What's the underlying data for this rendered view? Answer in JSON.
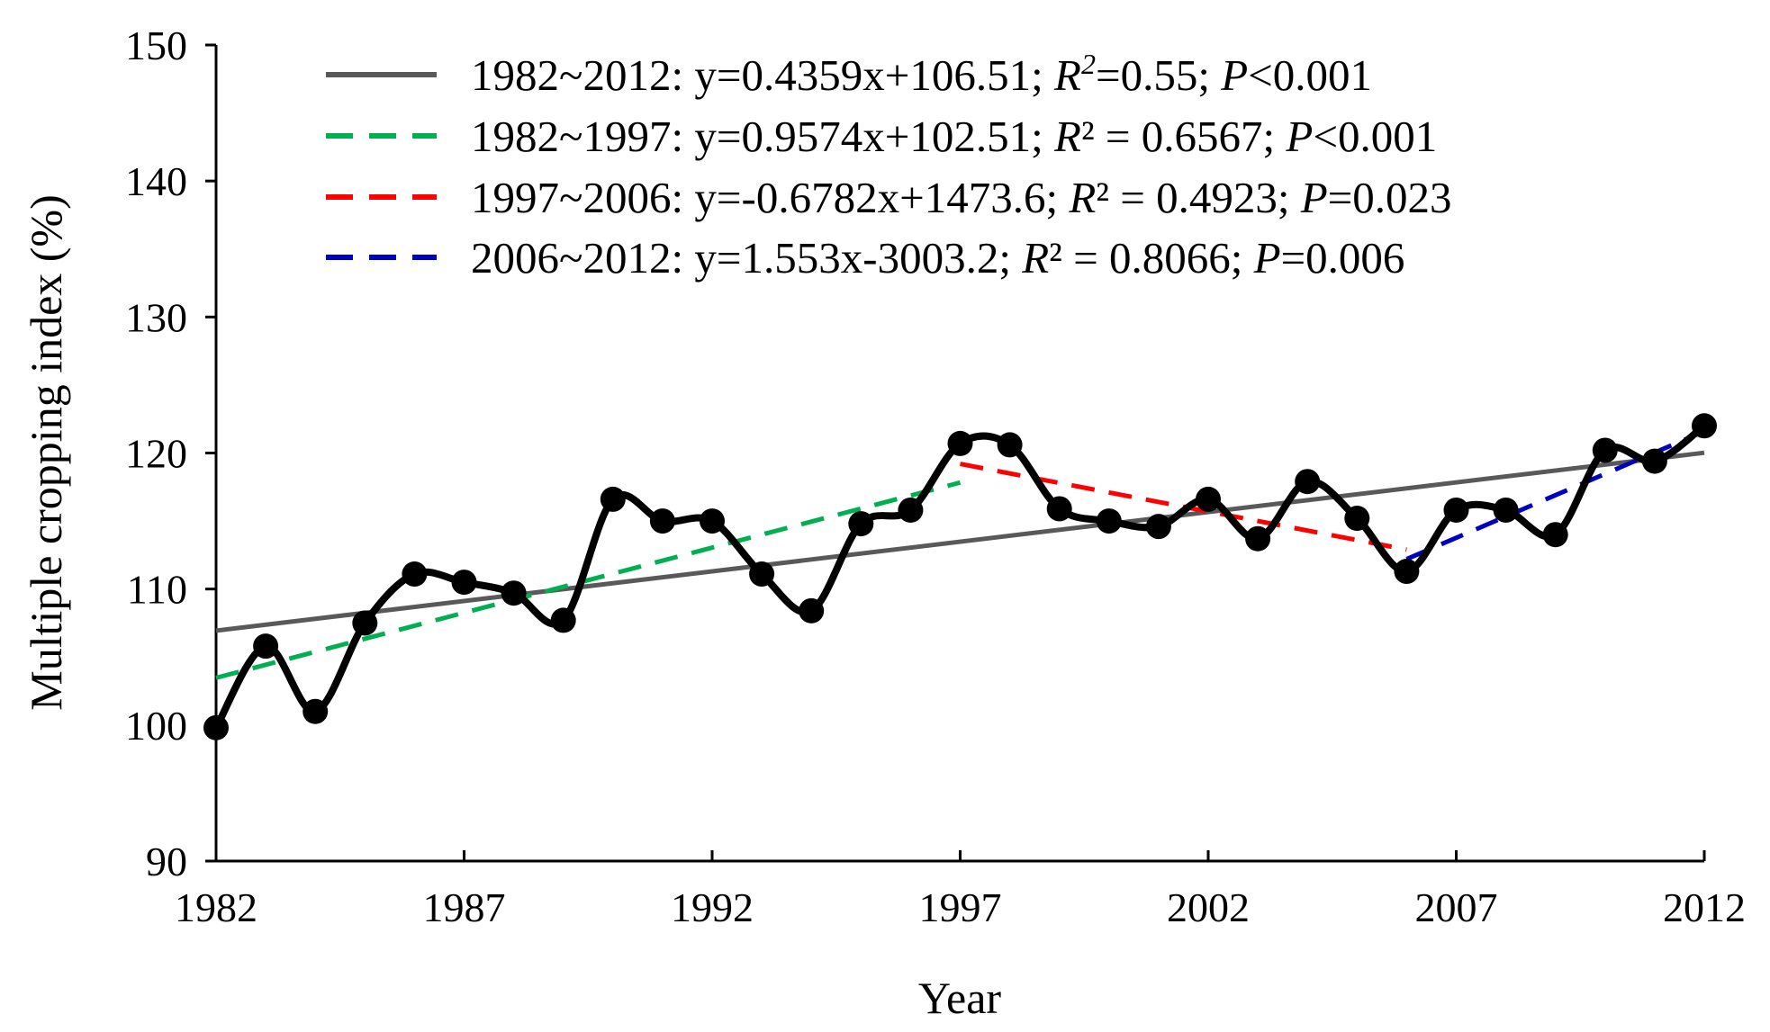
{
  "chart_data": {
    "type": "line",
    "xlabel": "Year",
    "ylabel": "Multiple cropping index (%)",
    "xlim": [
      1982,
      2012
    ],
    "ylim": [
      90,
      150
    ],
    "x_ticks": [
      "1982",
      "1987",
      "1992",
      "1997",
      "2002",
      "2007",
      "2012"
    ],
    "y_ticks": [
      "90",
      "100",
      "110",
      "120",
      "130",
      "140",
      "150"
    ],
    "grid": false,
    "legend_position": "top",
    "series": [
      {
        "name": "Multiple cropping index",
        "color": "#000000",
        "x": [
          1982,
          1983,
          1984,
          1985,
          1986,
          1987,
          1988,
          1989,
          1990,
          1991,
          1992,
          1993,
          1994,
          1995,
          1996,
          1997,
          1998,
          1999,
          2000,
          2001,
          2002,
          2003,
          2004,
          2005,
          2006,
          2007,
          2008,
          2009,
          2010,
          2011,
          2012
        ],
        "values": [
          99.8,
          105.8,
          101.0,
          107.5,
          111.1,
          110.5,
          109.7,
          107.7,
          116.6,
          115.0,
          115.0,
          111.1,
          108.4,
          114.8,
          115.8,
          120.7,
          120.6,
          115.9,
          115.0,
          114.6,
          116.6,
          113.7,
          117.9,
          115.2,
          111.3,
          115.8,
          115.8,
          114.0,
          120.2,
          119.4,
          122.0
        ]
      }
    ],
    "trend_lines": [
      {
        "label_period": "1982~2012",
        "label_eq": "y=0.4359x+106.51",
        "r2_value": "=0.55",
        "p_value": "<0.001",
        "color": "#595959",
        "dashed": false,
        "x0": 1982,
        "x1": 2012,
        "y0": 106.94,
        "y1": 120.02
      },
      {
        "label_period": "1982~1997",
        "label_eq": "y=0.9574x+102.51",
        "r2_value": " = 0.6567",
        "p_value": "<0.001",
        "color": "#00b050",
        "dashed": true,
        "x0": 1982,
        "x1": 1997,
        "y0": 103.47,
        "y1": 117.83
      },
      {
        "label_period": "1997~2006",
        "label_eq": "y=-0.6782x+1473.6",
        "r2_value": " = 0.4923",
        "p_value": "=0.023",
        "color": "#ff0000",
        "dashed": true,
        "x0": 1997,
        "x1": 2006,
        "y0": 119.2,
        "y1": 112.9
      },
      {
        "label_period": "2006~2012",
        "label_eq": "y=1.553x-3003.2",
        "r2_value": " = 0.8066",
        "p_value": "=0.006",
        "color": "#0000c0",
        "dashed": true,
        "x0": 2006,
        "x1": 2012,
        "y0": 112.2,
        "y1": 121.6
      }
    ],
    "legend": [
      {
        "text": "1982~2012: y=0.4359x+106.51; ",
        "r": "R",
        "sup": "2",
        "mid": "=0.55; ",
        "p": "P",
        "tail": "<0.001"
      },
      {
        "text": "1982~1997: y=0.9574x+102.51; ",
        "r": "R",
        "sup": "²",
        "mid": " = 0.6567; ",
        "p": "P",
        "tail": "<0.001"
      },
      {
        "text": "1997~2006: y=-0.6782x+1473.6; ",
        "r": "R",
        "sup": "²",
        "mid": " = 0.4923; ",
        "p": "P",
        "tail": "=0.023"
      },
      {
        "text": "2006~2012: y=1.553x-3003.2; ",
        "r": "R",
        "sup": "²",
        "mid": " = 0.8066; ",
        "p": "P",
        "tail": "=0.006"
      }
    ]
  }
}
